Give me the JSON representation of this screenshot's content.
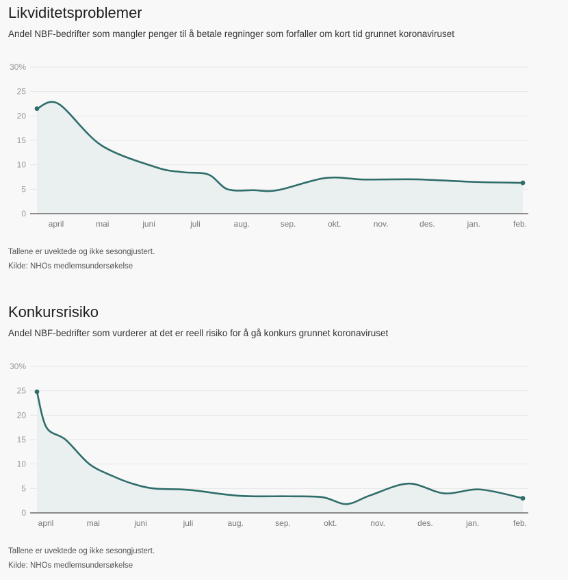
{
  "chart_data": [
    {
      "type": "area",
      "title": "Likviditetsproblemer",
      "subtitle": "Andel NBF-bedrifter som mangler penger til å betale regninger som forfaller om kort tid grunnet koronaviruset",
      "y_unit": "%",
      "ylim": [
        0,
        30
      ],
      "yticks": [
        "30%",
        "25",
        "20",
        "15",
        "10",
        "5",
        "0"
      ],
      "ytick_values": [
        30,
        25,
        20,
        15,
        10,
        5,
        0
      ],
      "grid": true,
      "categories": [
        "april",
        "mai",
        "juni",
        "juli",
        "aug.",
        "sep.",
        "okt.",
        "nov.",
        "des.",
        "jan.",
        "feb."
      ],
      "x": [
        0,
        0.45,
        1.35,
        2.5,
        3.05,
        3.6,
        4.0,
        4.55,
        5.05,
        6.05,
        6.8,
        7.25,
        8.05,
        9.15,
        10.2
      ],
      "values": [
        21.5,
        22.5,
        14,
        9.5,
        8.5,
        8,
        5,
        4.8,
        4.8,
        7.3,
        7,
        7,
        7,
        6.5,
        6.3
      ],
      "notes": [
        "Tallene er uvektede og ikke sesongjustert.",
        "Kilde: NHOs medlemsundersøkelse"
      ],
      "colors": {
        "line": "#2f6d6b",
        "fill": "#e9f0ef"
      }
    },
    {
      "type": "area",
      "title": "Konkursrisiko",
      "subtitle": "Andel NBF-bedrifter som vurderer at det er reell risiko for å gå konkurs grunnet koronaviruset",
      "y_unit": "%",
      "ylim": [
        0,
        30
      ],
      "yticks": [
        "30%",
        "25",
        "20",
        "15",
        "10",
        "5",
        "0"
      ],
      "ytick_values": [
        30,
        25,
        20,
        15,
        10,
        5,
        0
      ],
      "grid": true,
      "categories": [
        "april",
        "mai",
        "juni",
        "juli",
        "aug.",
        "sep.",
        "okt.",
        "nov.",
        "des.",
        "jan.",
        "feb."
      ],
      "x": [
        0,
        0.2,
        0.6,
        1.1,
        1.6,
        2.0,
        2.45,
        3.2,
        4.25,
        5.3,
        6.0,
        6.5,
        7.0,
        7.8,
        8.55,
        9.3,
        10.2
      ],
      "values": [
        24.8,
        17.5,
        15,
        10,
        7.5,
        6,
        5,
        4.7,
        3.5,
        3.4,
        3.2,
        1.8,
        3.6,
        6,
        4,
        4.8,
        3
      ],
      "notes": [
        "Tallene er uvektede og ikke sesongjustert.",
        "Kilde: NHOs medlemsundersøkelse"
      ],
      "colors": {
        "line": "#2f6d6b",
        "fill": "#e9f0ef"
      }
    }
  ]
}
